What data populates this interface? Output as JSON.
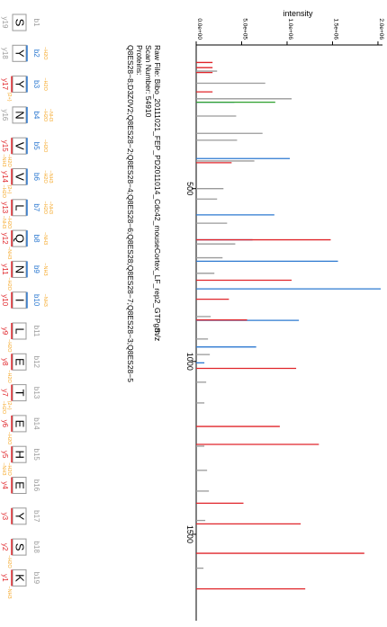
{
  "chart_data": {
    "type": "bar",
    "orientation": "rotated 90 degrees clockwise (m/z increases downward, intensity increases rightward)",
    "ylabel": "intensity",
    "xlabel": "m/z",
    "xlim": [
      100,
      1750
    ],
    "ylim": [
      0,
      2050000
    ],
    "x_ticks": [
      500,
      1000,
      1500
    ],
    "y_ticks": [
      "0.0e+00",
      "5.0e+05",
      "1.0e+06",
      "1.5e+06",
      "2.0e+06"
    ],
    "y_tick_values": [
      0,
      500000,
      1000000,
      1500000,
      2000000
    ],
    "grid": false,
    "header": {
      "raw_file": "Raw File: Bibo_20111021_FEP_PD2011014_Cdc42_mouseCortex_LF_rep2_GTPgS",
      "scan": "Scan Number:  54910",
      "proteins_label": "Proteins:",
      "proteins": "Q8ES28−8;D3Z0V2;Q8ES28−2;Q8ES28−4;Q8ES28−6;Q8ES28;Q8ES28−7;Q8ES28−3;Q8ES28−5"
    },
    "sequence": [
      "S",
      "Y",
      "Y",
      "N",
      "V",
      "V",
      "L",
      "Q",
      "N",
      "I",
      "L",
      "E",
      "T",
      "E",
      "H",
      "E",
      "Y",
      "S",
      "K"
    ],
    "b_labels": [
      "b1",
      "b2",
      "b3",
      "b4",
      "b5",
      "b6",
      "b7",
      "b8",
      "b9",
      "b10",
      "b11",
      "b12",
      "b13",
      "b14",
      "b15",
      "b16",
      "b17",
      "b18",
      "b19"
    ],
    "y_labels": [
      "y19",
      "y18",
      "y17",
      "y16",
      "y15",
      "y14",
      "y13",
      "y12",
      "y11",
      "y10",
      "y9",
      "y8",
      "y7",
      "y6",
      "y5",
      "y4",
      "y3",
      "y2",
      "y1"
    ],
    "b_observed": [
      false,
      true,
      true,
      true,
      true,
      true,
      true,
      true,
      true,
      true,
      false,
      false,
      false,
      false,
      false,
      false,
      false,
      false,
      false
    ],
    "y_observed": [
      false,
      false,
      true,
      false,
      true,
      true,
      true,
      true,
      true,
      true,
      true,
      true,
      true,
      true,
      true,
      true,
      true,
      true,
      true
    ],
    "b_loss_notes": [
      "",
      "−H2O",
      "−H2O",
      "−H2O\n−NH3",
      "−H2O",
      "−H2O\n−NH3",
      "−H2O\n−NH3",
      "−NH3",
      "−NH3",
      "−NH3",
      "",
      "",
      "",
      "",
      "",
      "",
      "",
      "",
      ""
    ],
    "y_loss_notes": [
      "",
      "",
      "(2+)",
      "",
      "−H2O\n−NH3",
      "(2+)\n−H2O",
      "−H2O\n−NH3",
      "−NH3",
      "−H2O",
      "",
      "−H2O",
      "−H2O",
      "(2+)\n−H2O",
      "−H2O",
      "−H2O\n−NH3",
      "",
      "",
      "−H2O",
      "−NH3"
    ],
    "colors": {
      "b_ion": "#2b78d0",
      "y_ion": "#e0252a",
      "unmatched": "#9a9a9a",
      "loss": "#f5a623",
      "precursor": "#2ca02c",
      "internal": "#1f2f8a",
      "axis": "#000000"
    },
    "series": [
      {
        "name": "b",
        "color": "#2b78d0",
        "x": [
          250,
          413,
          576,
          648,
          710,
          790,
          881,
          958,
          1004
        ],
        "y": [
          420000,
          1030000,
          860000,
          620000,
          1560000,
          2030000,
          1130000,
          660000,
          90000
        ]
      },
      {
        "name": "y",
        "color": "#e0252a",
        "x": [
          135,
          150,
          164,
          220,
          425,
          648,
          765,
          820,
          880,
          1020,
          1188,
          1240,
          1410,
          1470,
          1555,
          1658
        ],
        "y": [
          180000,
          180000,
          180000,
          180000,
          390000,
          1480000,
          1050000,
          360000,
          560000,
          1100000,
          920000,
          1350000,
          520000,
          1150000,
          1850000,
          1200000
        ]
      },
      {
        "name": "unmatched",
        "color": "#9a9a9a",
        "x": [
          160,
          195,
          240,
          290,
          340,
          360,
          420,
          500,
          530,
          600,
          660,
          700,
          745,
          870,
          935,
          980,
          1060,
          1120,
          1245,
          1315,
          1375,
          1460,
          1598
        ],
        "y": [
          230000,
          760000,
          1050000,
          440000,
          730000,
          450000,
          640000,
          300000,
          230000,
          340000,
          430000,
          290000,
          200000,
          160000,
          130000,
          150000,
          110000,
          90000,
          90000,
          120000,
          140000,
          100000,
          80000
        ]
      },
      {
        "name": "precursor",
        "color": "#2ca02c",
        "x": [
          250
        ],
        "y": [
          870000
        ]
      }
    ]
  }
}
